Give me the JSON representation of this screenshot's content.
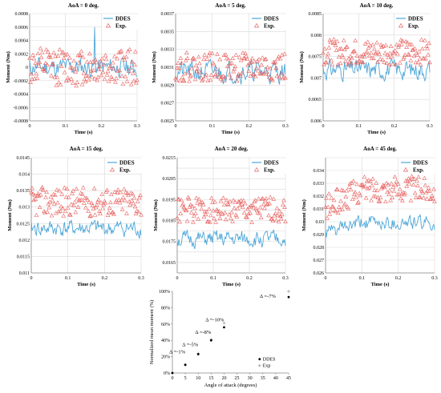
{
  "colors": {
    "ddes": "#4da6d8",
    "exp": "#e8605e",
    "grid": "#d9d9d9",
    "axis": "#888888",
    "ddes_marker": "#000000",
    "exp_marker": "#a0a0a0"
  },
  "chart_data": [
    {
      "type": "line",
      "title": "AoA = 0 deg.",
      "xlabel": "Time (s)",
      "ylabel": "Moment (Nm)",
      "xlim": [
        0,
        0.3
      ],
      "ylim": [
        -0.0008,
        0.0008
      ],
      "xticks": [
        0,
        0.1,
        0.2,
        0.3
      ],
      "xtick_labels": [
        "0",
        "0.1",
        "0.2",
        "0.3"
      ],
      "yticks": [
        -0.0008,
        -0.0006,
        -0.0004,
        -0.0002,
        0,
        0.0002,
        0.0004,
        0.0006,
        0.0008
      ],
      "ytick_labels": [
        "-0.0008",
        "-0.0006",
        "-0.0004",
        "-0.0002",
        "0",
        "0.0002",
        "0.0004",
        "0.0006",
        "0.0008"
      ],
      "grid": true,
      "legend": "top-right",
      "series": [
        {
          "name": "DDES",
          "style": "line",
          "center": 0.0,
          "amp": 0.00022,
          "spike": 0.0006,
          "seed": 11
        },
        {
          "name": "Exp.",
          "style": "triangle-marker",
          "center": 0.0,
          "amp": 0.00028,
          "seed": 12
        }
      ]
    },
    {
      "type": "line",
      "title": "AoA = 5 deg.",
      "xlabel": "Time (s)",
      "ylabel": "Moment (Nm)",
      "xlim": [
        0,
        0.3
      ],
      "ylim": [
        0.0025,
        0.0037
      ],
      "xticks": [
        0,
        0.1,
        0.2,
        0.3
      ],
      "xtick_labels": [
        "0",
        "0.1",
        "0.2",
        "0.3"
      ],
      "yticks": [
        0.0025,
        0.0027,
        0.0029,
        0.0031,
        0.0033,
        0.0035,
        0.0037
      ],
      "ytick_labels": [
        "0.0025",
        "0.0027",
        "0.0029",
        "0.0031",
        "0.0033",
        "0.0035",
        "0.0037"
      ],
      "grid": true,
      "legend": "top-right",
      "series": [
        {
          "name": "DDES",
          "style": "line",
          "center": 0.00305,
          "amp": 0.00018,
          "seed": 21
        },
        {
          "name": "Exp.",
          "style": "triangle-marker",
          "center": 0.0031,
          "amp": 0.00016,
          "seed": 22
        }
      ]
    },
    {
      "type": "line",
      "title": "AoA = 10 deg.",
      "xlabel": "Time (s)",
      "ylabel": "Moment (Nm)",
      "xlim": [
        0,
        0.3
      ],
      "ylim": [
        0.006,
        0.0085
      ],
      "xticks": [
        0,
        0.1,
        0.2,
        0.3
      ],
      "xtick_labels": [
        "0",
        "0.1",
        "0.2",
        "0.3"
      ],
      "yticks": [
        0.006,
        0.0065,
        0.007,
        0.0075,
        0.008,
        0.0085
      ],
      "ytick_labels": [
        "0.006",
        "0.0065",
        "0.007",
        "0.0075",
        "0.008",
        "0.0085"
      ],
      "grid": true,
      "legend": "top-right",
      "series": [
        {
          "name": "DDES",
          "style": "line",
          "center": 0.0072,
          "amp": 0.00035,
          "seed": 31
        },
        {
          "name": "Exp.",
          "style": "triangle-marker",
          "center": 0.0076,
          "amp": 0.0003,
          "seed": 32
        }
      ]
    },
    {
      "type": "line",
      "title": "AoA = 15 deg.",
      "xlabel": "Time (s)",
      "ylabel": "Moment (Nm)",
      "xlim": [
        0,
        0.3
      ],
      "ylim": [
        0.011,
        0.0145
      ],
      "xticks": [
        0,
        0.1,
        0.2,
        0.3
      ],
      "xtick_labels": [
        "0",
        "0.1",
        "0.2",
        "0.3"
      ],
      "yticks": [
        0.011,
        0.0115,
        0.012,
        0.0125,
        0.013,
        0.0135,
        0.014,
        0.0145
      ],
      "ytick_labels": [
        "0.011",
        "0.0115",
        "0.012",
        "0.0125",
        "0.013",
        "0.0135",
        "0.014",
        "0.0145"
      ],
      "grid": true,
      "legend": "top-right",
      "series": [
        {
          "name": "DDES",
          "style": "line",
          "center": 0.01235,
          "amp": 0.0004,
          "seed": 41
        },
        {
          "name": "Exp.",
          "style": "triangle-marker",
          "center": 0.01315,
          "amp": 0.00045,
          "seed": 42
        }
      ]
    },
    {
      "type": "line",
      "title": "AoA = 20 deg.",
      "xlabel": "Time (s)",
      "ylabel": "Moment (Nm)",
      "xlim": [
        0,
        0.3
      ],
      "ylim": [
        0.016,
        0.0215
      ],
      "xticks": [
        0,
        0.1,
        0.2,
        0.3
      ],
      "xtick_labels": [
        "0",
        "0.1",
        "0.2",
        "0.3"
      ],
      "yticks": [
        0.016,
        0.0165,
        0.017,
        0.0175,
        0.018,
        0.0185,
        0.019,
        0.0195,
        0.02,
        0.0205,
        0.021,
        0.0215
      ],
      "ytick_labels": [
        "",
        "0.0165",
        "",
        "0.0175",
        "",
        "0.0185",
        "",
        "0.0195",
        "",
        "0.0205",
        "",
        "0.0215"
      ],
      "grid": true,
      "legend": "top-right",
      "series": [
        {
          "name": "DDES",
          "style": "line",
          "center": 0.0176,
          "amp": 0.0006,
          "seed": 51
        },
        {
          "name": "Exp.",
          "style": "triangle-marker",
          "center": 0.019,
          "amp": 0.0006,
          "seed": 52
        }
      ]
    },
    {
      "type": "line",
      "title": "AoA = 45 deg.",
      "xlabel": "Time (s)",
      "ylabel": "Moment (Nm)",
      "xlim": [
        0,
        0.3
      ],
      "ylim": [
        0.026,
        0.035
      ],
      "xticks": [
        0,
        0.1,
        0.2,
        0.3
      ],
      "xtick_labels": [
        "0",
        "0.1",
        "0.2",
        "0.3"
      ],
      "yticks": [
        0.026,
        0.027,
        0.028,
        0.029,
        0.03,
        0.031,
        0.032,
        0.033,
        0.034,
        0.035
      ],
      "ytick_labels": [
        "0.026",
        "0.027",
        "0.028",
        "0.029",
        "0.03",
        "0.031",
        "0.032",
        "0.033",
        "0.034",
        ""
      ],
      "grid": true,
      "legend": "top-right",
      "series": [
        {
          "name": "DDES",
          "style": "line",
          "center": 0.0295,
          "amp": 0.0009,
          "rise": 0.0008,
          "seed": 61
        },
        {
          "name": "Exp.",
          "style": "triangle-marker",
          "center": 0.0318,
          "amp": 0.001,
          "rise": 0.0015,
          "seed": 62
        }
      ]
    },
    {
      "type": "scatter",
      "title": "",
      "xlabel": "Angle of attack (degrees)",
      "ylabel": "Normalized mean moment (%)",
      "xlim": [
        0,
        45
      ],
      "ylim": [
        0,
        100
      ],
      "xticks": [
        0,
        5,
        10,
        15,
        20,
        25,
        30,
        35,
        40,
        45
      ],
      "xtick_labels": [
        "0",
        "5",
        "10",
        "15",
        "20",
        "25",
        "30",
        "35",
        "40",
        "45"
      ],
      "yticks": [
        0,
        20,
        40,
        60,
        80,
        100
      ],
      "ytick_labels": [
        "0%",
        "20%",
        "40%",
        "60%",
        "80%",
        "100%"
      ],
      "grid": false,
      "legend": "bottom-right",
      "x": [
        0,
        5,
        10,
        15,
        20,
        45
      ],
      "series": [
        {
          "name": "DDES",
          "values": [
            0,
            10,
            23,
            40,
            56,
            93
          ]
        },
        {
          "name": "Exp",
          "values": [
            0,
            10,
            24,
            41,
            61,
            100
          ]
        }
      ],
      "annotations": [
        {
          "text": "Δ =-1%",
          "x": 5,
          "y": 24
        },
        {
          "text": "Δ =-5%",
          "x": 10,
          "y": 33
        },
        {
          "text": "Δ =-8%",
          "x": 15,
          "y": 48
        },
        {
          "text": "Δ =-10%",
          "x": 20,
          "y": 63
        },
        {
          "text": "Δ =-7%",
          "x": 40,
          "y": 92
        }
      ]
    }
  ]
}
